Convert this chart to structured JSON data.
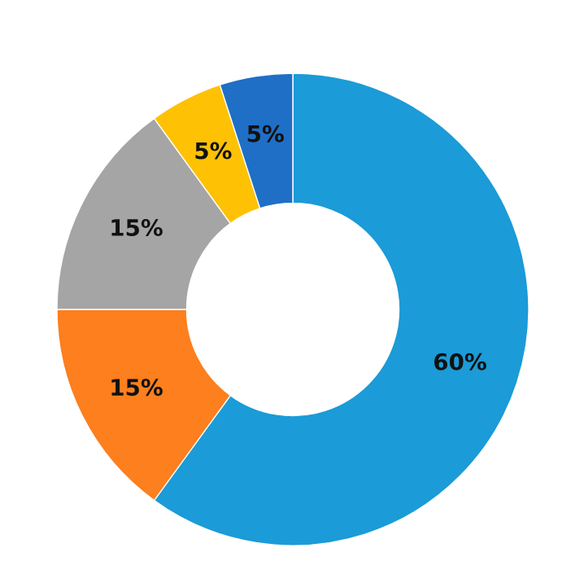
{
  "chart_data": {
    "type": "donut",
    "categories": [
      null,
      null,
      null,
      null,
      null
    ],
    "values": [
      60,
      15,
      15,
      5,
      5
    ],
    "colors": [
      "#1b9bd7",
      "#fd7f1e",
      "#a5a5a5",
      "#fec104",
      "#1f6fc6"
    ],
    "value_labels": [
      "60%",
      "15%",
      "15%",
      "5%",
      "5%"
    ],
    "legend": false
  }
}
